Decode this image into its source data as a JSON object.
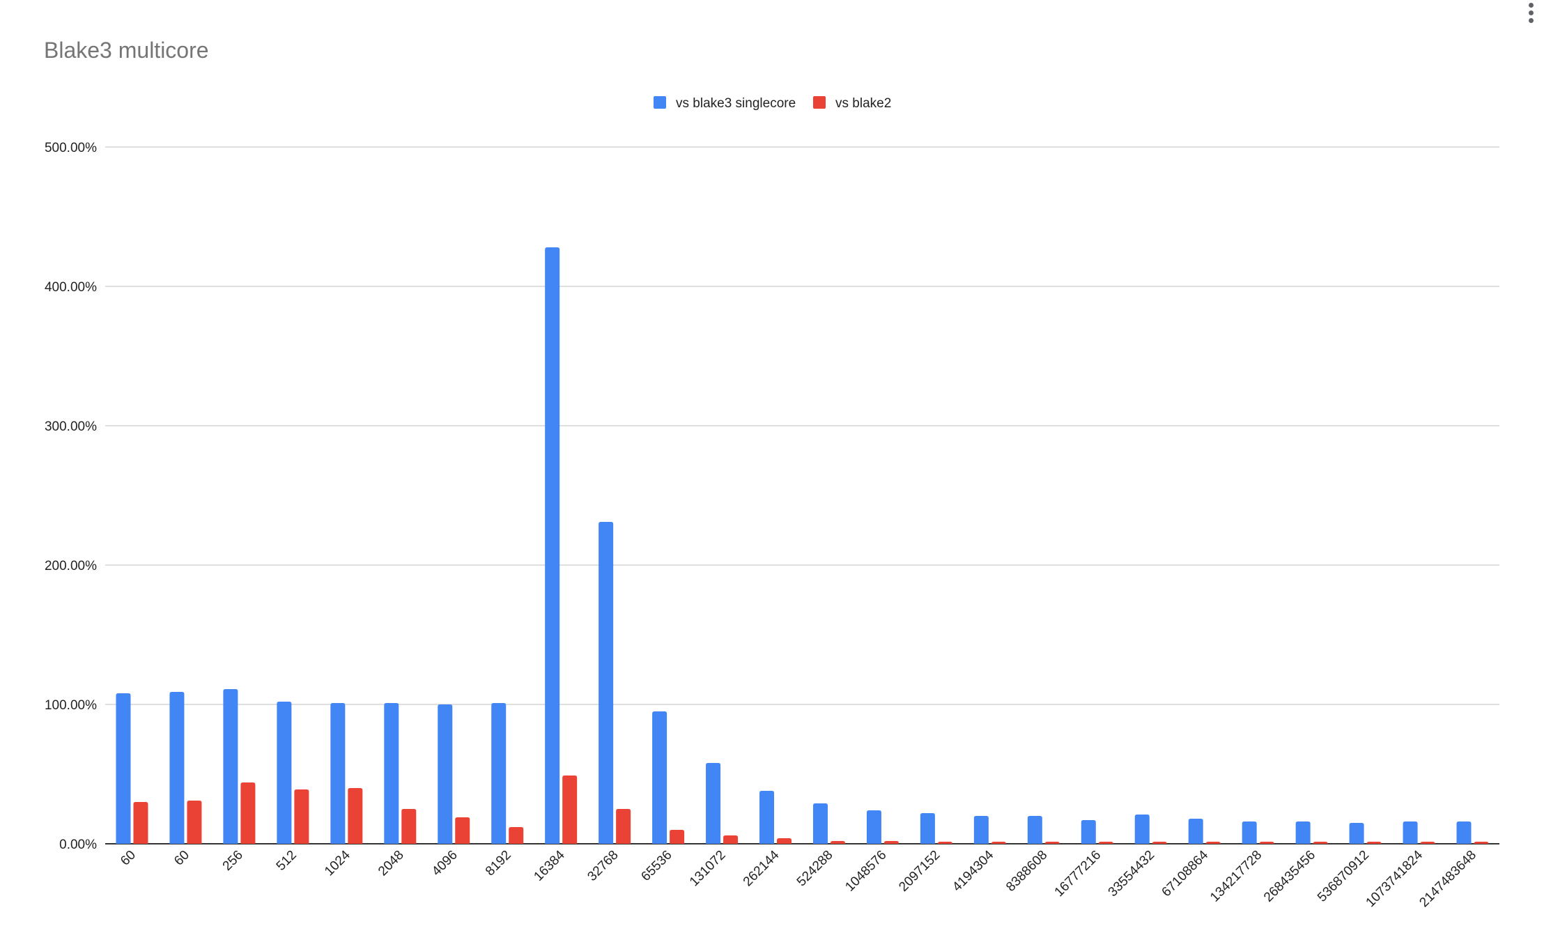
{
  "chart_data": {
    "type": "bar",
    "title": "Blake3 multicore",
    "xlabel": "",
    "ylabel": "",
    "ylim": [
      0,
      500
    ],
    "y_ticks": [
      "0.00%",
      "100.00%",
      "200.00%",
      "300.00%",
      "400.00%",
      "500.00%"
    ],
    "y_tick_values": [
      0,
      100,
      200,
      300,
      400,
      500
    ],
    "legend_position": "top-center",
    "grid": true,
    "categories": [
      "60",
      "60",
      "256",
      "512",
      "1024",
      "2048",
      "4096",
      "8192",
      "16384",
      "32768",
      "65536",
      "131072",
      "262144",
      "524288",
      "1048576",
      "2097152",
      "4194304",
      "8388608",
      "16777216",
      "33554432",
      "67108864",
      "134217728",
      "268435456",
      "536870912",
      "1073741824",
      "2147483648"
    ],
    "series": [
      {
        "name": "vs blake3 singlecore",
        "color": "#4285f4",
        "values": [
          108,
          109,
          111,
          102,
          101,
          101,
          100,
          101,
          428,
          231,
          95,
          58,
          38,
          29,
          24,
          22,
          20,
          20,
          17,
          21,
          18,
          16,
          16,
          15,
          16,
          16
        ]
      },
      {
        "name": "vs blake2",
        "color": "#ea4335",
        "values": [
          30,
          31,
          44,
          39,
          40,
          25,
          19,
          12,
          49,
          25,
          10,
          6,
          4,
          2,
          2,
          1.5,
          1.5,
          1.5,
          1.5,
          1.5,
          1.5,
          1.5,
          1.5,
          1.5,
          1.5,
          1.5
        ]
      }
    ]
  },
  "menu": {
    "icon": "more-vert-icon"
  }
}
